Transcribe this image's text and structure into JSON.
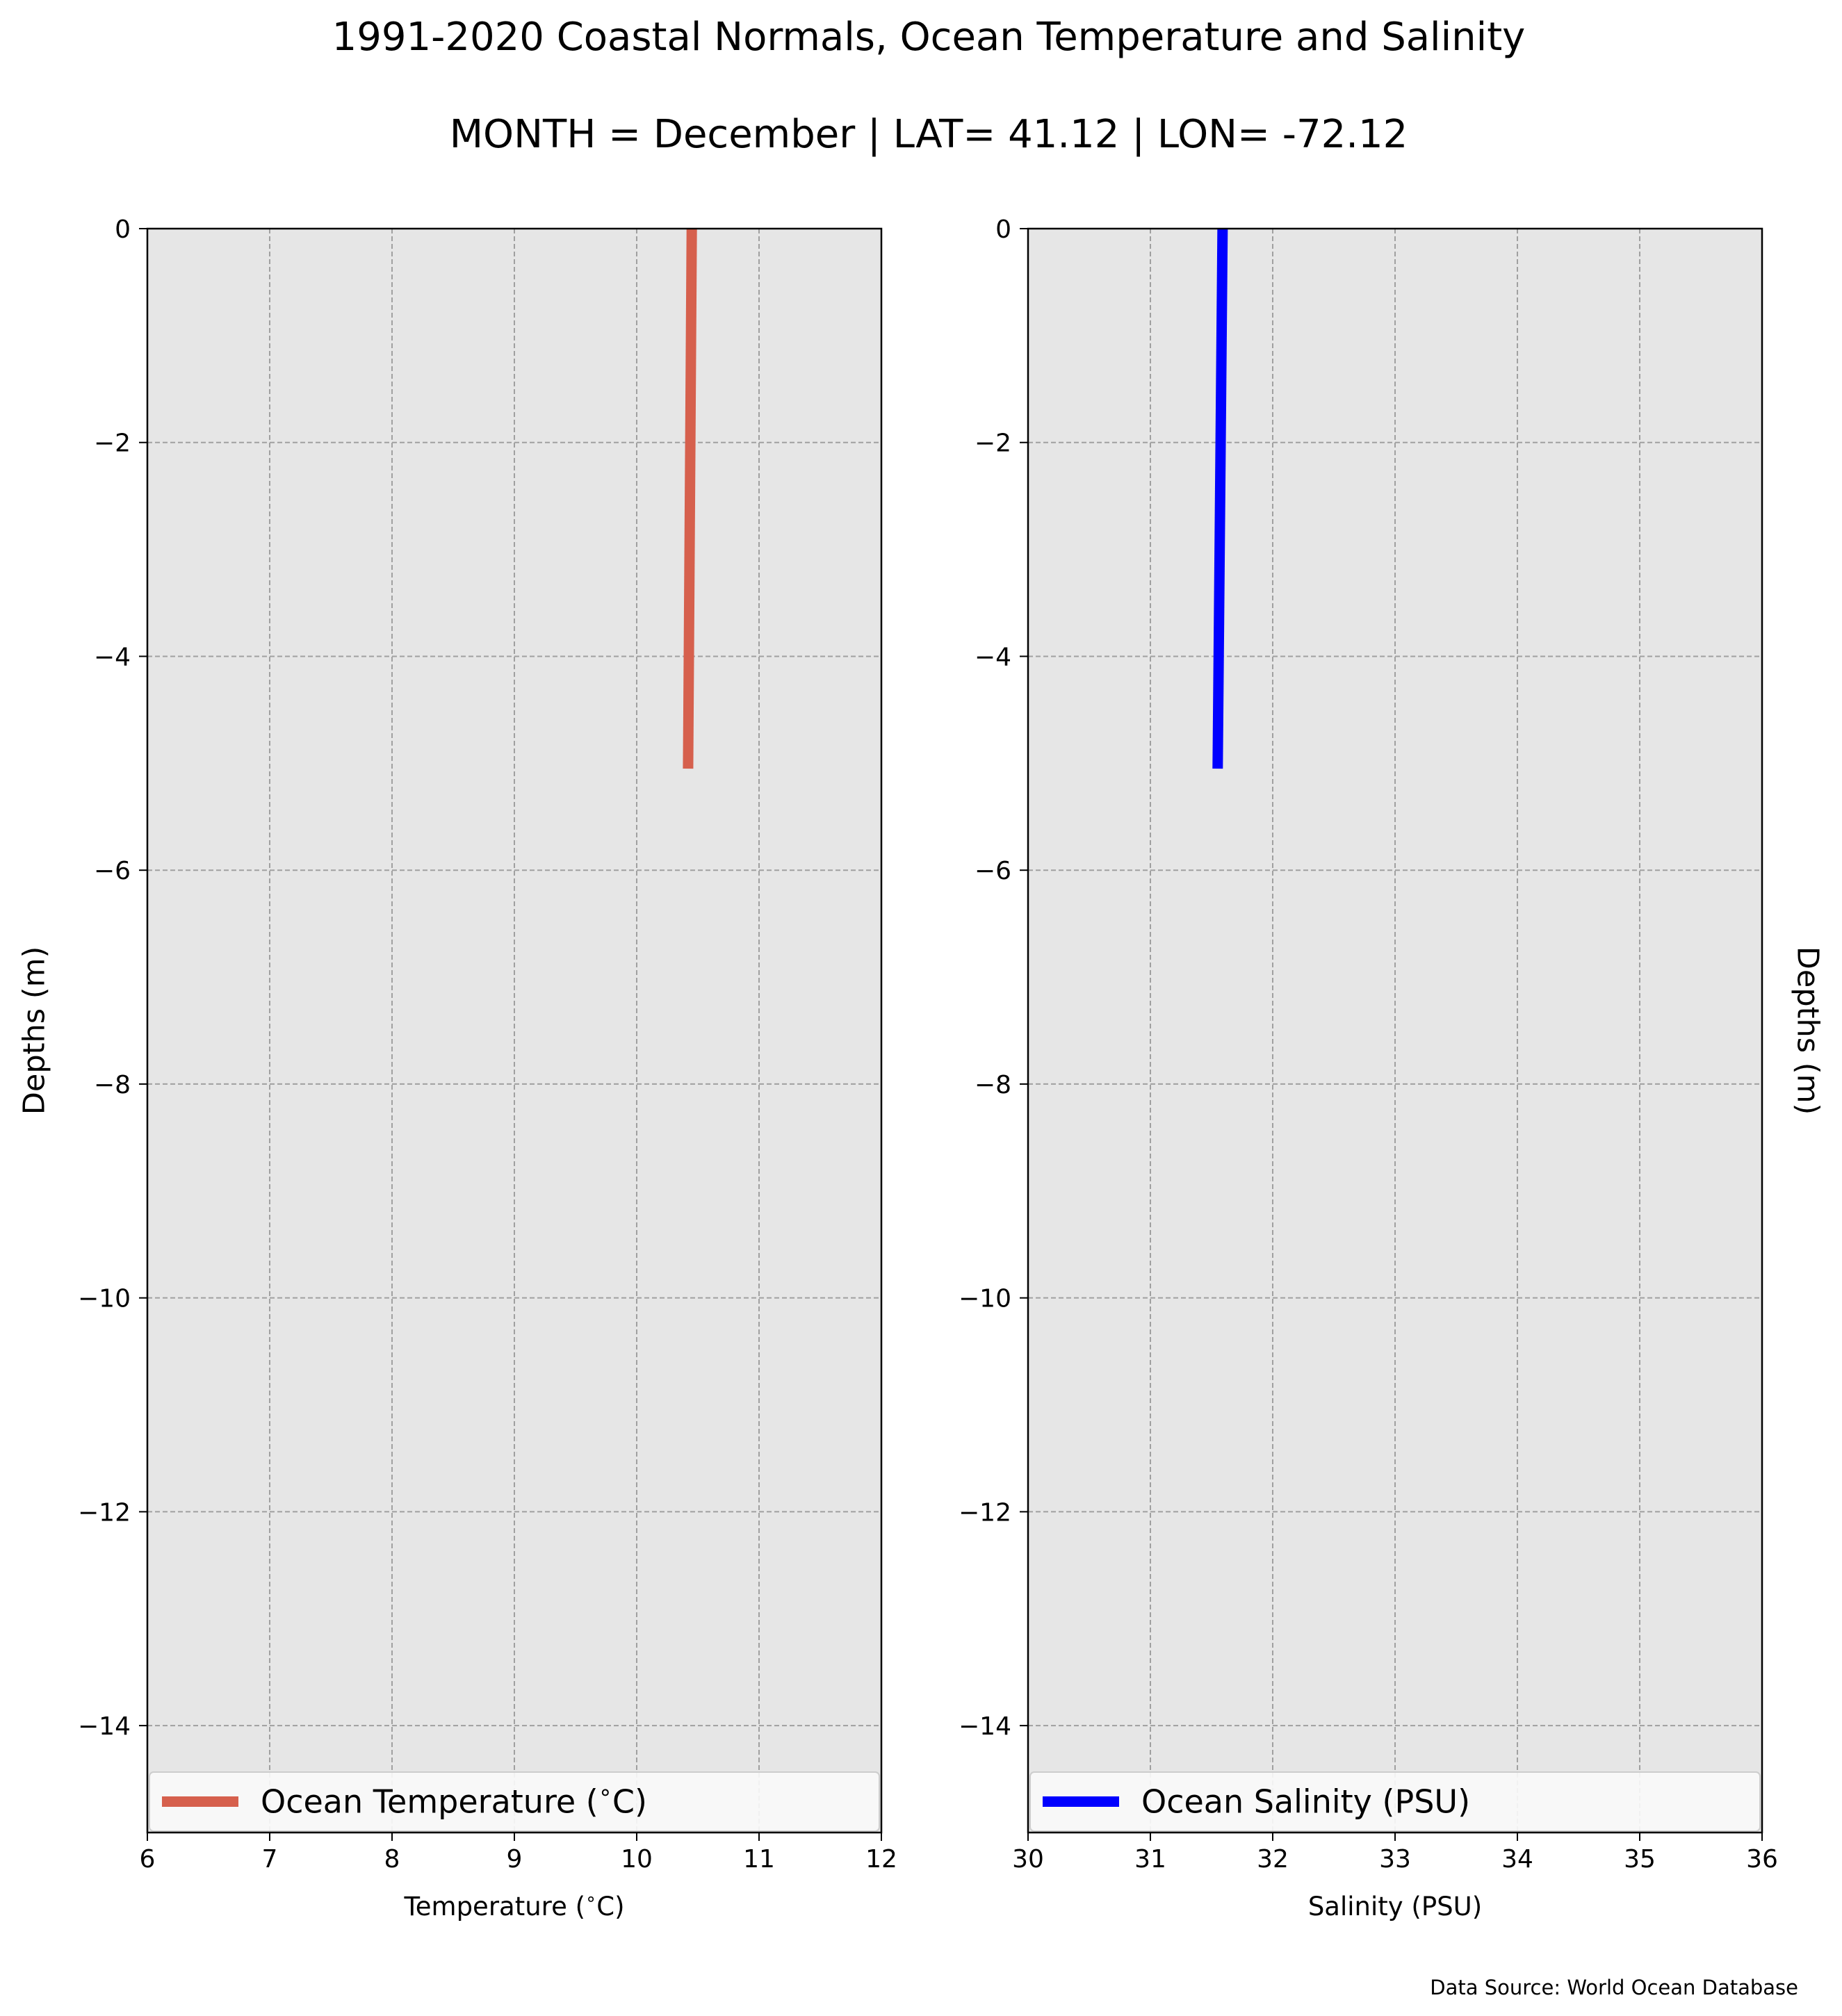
{
  "title": "1991-2020 Coastal Normals, Ocean Temperature and Salinity",
  "subtitle": "MONTH = December | LAT= 41.12 | LON= -72.12",
  "source_note": "Data Source: World Ocean Database",
  "colors": {
    "background": "#ffffff",
    "plot_bg": "#e6e6e6",
    "grid": "#a0a0a0",
    "temperature": "#d6604d",
    "salinity": "#0000ff"
  },
  "chart_data": [
    {
      "type": "line",
      "xlabel": "Temperature ($^\\circ$C)",
      "ylabel": "Depths (m)",
      "xlim": [
        6,
        12
      ],
      "ylim": [
        -15,
        0
      ],
      "xticks": [
        6,
        7,
        8,
        9,
        10,
        11,
        12
      ],
      "xtick_labels": [
        "6",
        "7",
        "8",
        "9",
        "10",
        "11",
        "12"
      ],
      "yticks": [
        0,
        -2,
        -4,
        -6,
        -8,
        -10,
        -12,
        -14
      ],
      "ytick_labels": [
        "0",
        "−2",
        "−4",
        "−6",
        "−8",
        "−10",
        "−12",
        "−14"
      ],
      "grid": true,
      "legend_position": "bottom",
      "series": [
        {
          "name": "Ocean Temperature ($^\\circ$C)",
          "color": "#d6604d",
          "x": [
            10.45,
            10.42
          ],
          "y": [
            0,
            -5.05
          ]
        }
      ]
    },
    {
      "type": "line",
      "xlabel": "Salinity (PSU)",
      "ylabel": "Depths (m)",
      "xlim": [
        30,
        36
      ],
      "ylim": [
        -15,
        0
      ],
      "xticks": [
        30,
        31,
        32,
        33,
        34,
        35,
        36
      ],
      "xtick_labels": [
        "30",
        "31",
        "32",
        "33",
        "34",
        "35",
        "36"
      ],
      "yticks": [
        0,
        -2,
        -4,
        -6,
        -8,
        -10,
        -12,
        -14
      ],
      "ytick_labels": [
        "0",
        "−2",
        "−4",
        "−6",
        "−8",
        "−10",
        "−12",
        "−14"
      ],
      "grid": true,
      "legend_position": "bottom",
      "series": [
        {
          "name": "Ocean Salinity (PSU)",
          "color": "#0000ff",
          "x": [
            31.59,
            31.55
          ],
          "y": [
            0,
            -5.05
          ]
        }
      ]
    }
  ]
}
